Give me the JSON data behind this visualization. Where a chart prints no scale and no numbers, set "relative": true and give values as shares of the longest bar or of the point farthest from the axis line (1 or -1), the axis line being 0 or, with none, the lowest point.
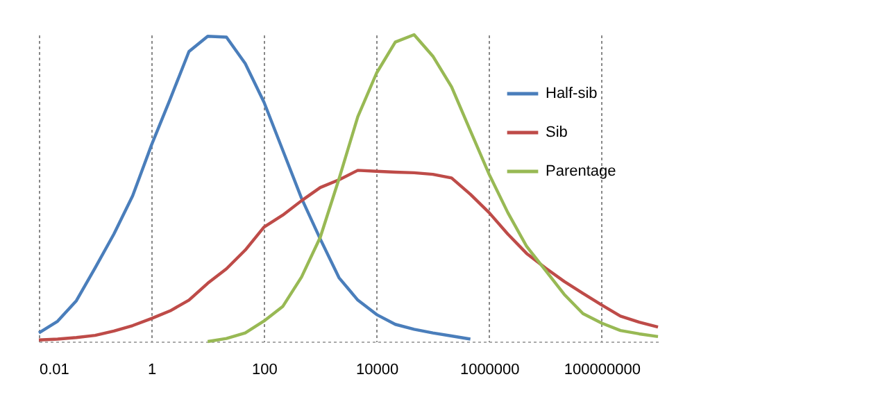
{
  "chart_data": {
    "type": "line",
    "relative": true,
    "log": "x",
    "x": [
      0.01,
      0.0215,
      0.0464,
      0.1,
      0.215,
      0.464,
      1,
      2.15,
      4.64,
      10,
      21.5,
      46.4,
      100,
      215,
      464,
      1000,
      2150,
      4640,
      10000,
      21500,
      46400,
      100000,
      215000,
      464000,
      1000000,
      2150000,
      4640000,
      10000000,
      21500000,
      46400000,
      100000000,
      215000000,
      464000000,
      1000000000
    ],
    "series": [
      {
        "name": "Half-sib",
        "color": "#4a7ebb",
        "values": [
          0.028,
          0.066,
          0.133,
          0.24,
          0.35,
          0.475,
          0.64,
          0.79,
          0.945,
          0.995,
          0.992,
          0.906,
          0.78,
          0.624,
          0.467,
          0.334,
          0.208,
          0.135,
          0.088,
          0.056,
          0.04,
          0.028,
          0.018,
          0.008,
          null,
          null,
          null,
          null,
          null,
          null,
          null,
          null,
          null,
          null
        ]
      },
      {
        "name": "Sib",
        "color": "#be4b48",
        "values": [
          0.005,
          0.008,
          0.013,
          0.02,
          0.034,
          0.052,
          0.075,
          0.1,
          0.135,
          0.19,
          0.237,
          0.298,
          0.373,
          0.412,
          0.459,
          0.502,
          0.527,
          0.558,
          0.555,
          0.552,
          0.55,
          0.545,
          0.533,
          0.48,
          0.42,
          0.35,
          0.287,
          0.24,
          0.196,
          0.157,
          0.119,
          0.083,
          0.063,
          0.047
        ]
      },
      {
        "name": "Parentage",
        "color": "#98b954",
        "values": [
          null,
          null,
          null,
          null,
          null,
          null,
          null,
          null,
          null,
          0.0,
          0.01,
          0.028,
          0.067,
          0.114,
          0.21,
          0.34,
          0.53,
          0.733,
          0.875,
          0.976,
          1.0,
          0.93,
          0.83,
          0.687,
          0.545,
          0.42,
          0.31,
          0.232,
          0.154,
          0.091,
          0.06,
          0.036,
          0.025,
          0.016
        ]
      }
    ],
    "xlim": [
      0.01,
      1000000000
    ],
    "xticks": [
      0.01,
      1,
      100,
      10000,
      1000000,
      100000000
    ],
    "grid": "x",
    "legend": "top right",
    "marker": "none",
    "line_style": "solid"
  }
}
